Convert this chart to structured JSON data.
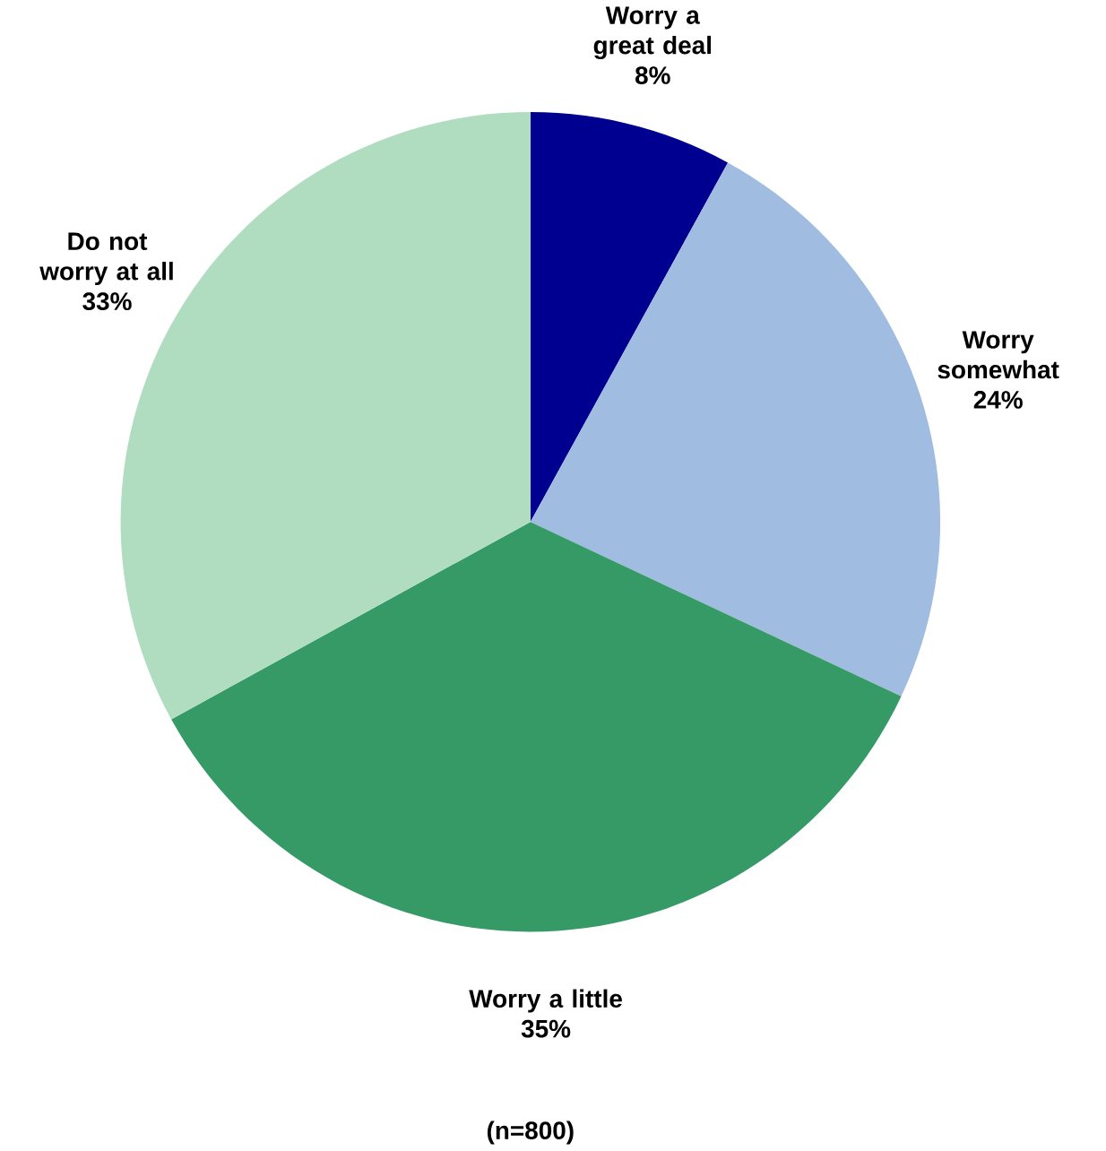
{
  "chart_data": {
    "type": "pie",
    "categories": [
      "Worry a great deal",
      "Worry somewhat",
      "Worry a little",
      "Do not worry at all"
    ],
    "values": [
      8,
      24,
      35,
      33
    ],
    "value_labels": [
      "8%",
      "24%",
      "35%",
      "33%"
    ],
    "colors": [
      "#000090",
      "#a0bce0",
      "#359a66",
      "#b0ddc0"
    ],
    "annotations": [
      "(n=800)"
    ]
  }
}
